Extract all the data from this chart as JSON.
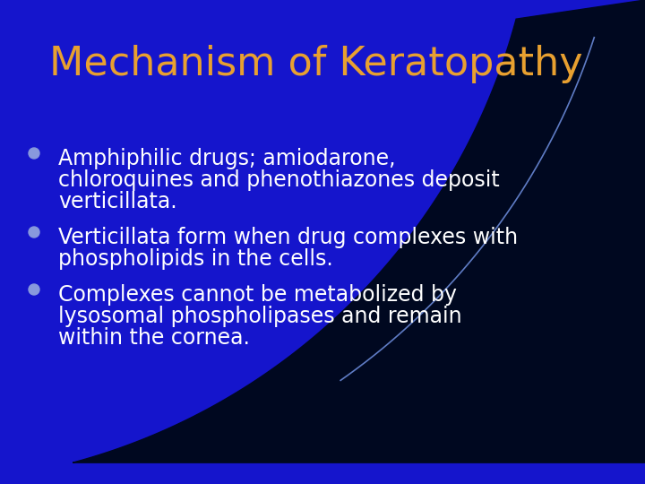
{
  "title": "Mechanism of Keratopathy",
  "title_color": "#E8A030",
  "title_fontsize": 32,
  "bg_color": "#1515CC",
  "bg_dark": "#000820",
  "bullet_color": "#8899DD",
  "text_color": "#FFFFFF",
  "text_fontsize": 17,
  "bullets": [
    [
      "Amphiphilic drugs; amiodarone,",
      "chloroquines and phenothiazones deposit",
      "verticillata."
    ],
    [
      "Verticillata form when drug complexes with",
      "phospholipids in the cells."
    ],
    [
      "Complexes cannot be metabolized by",
      "lysosomal phospholipases and remain",
      "within the cornea."
    ]
  ]
}
